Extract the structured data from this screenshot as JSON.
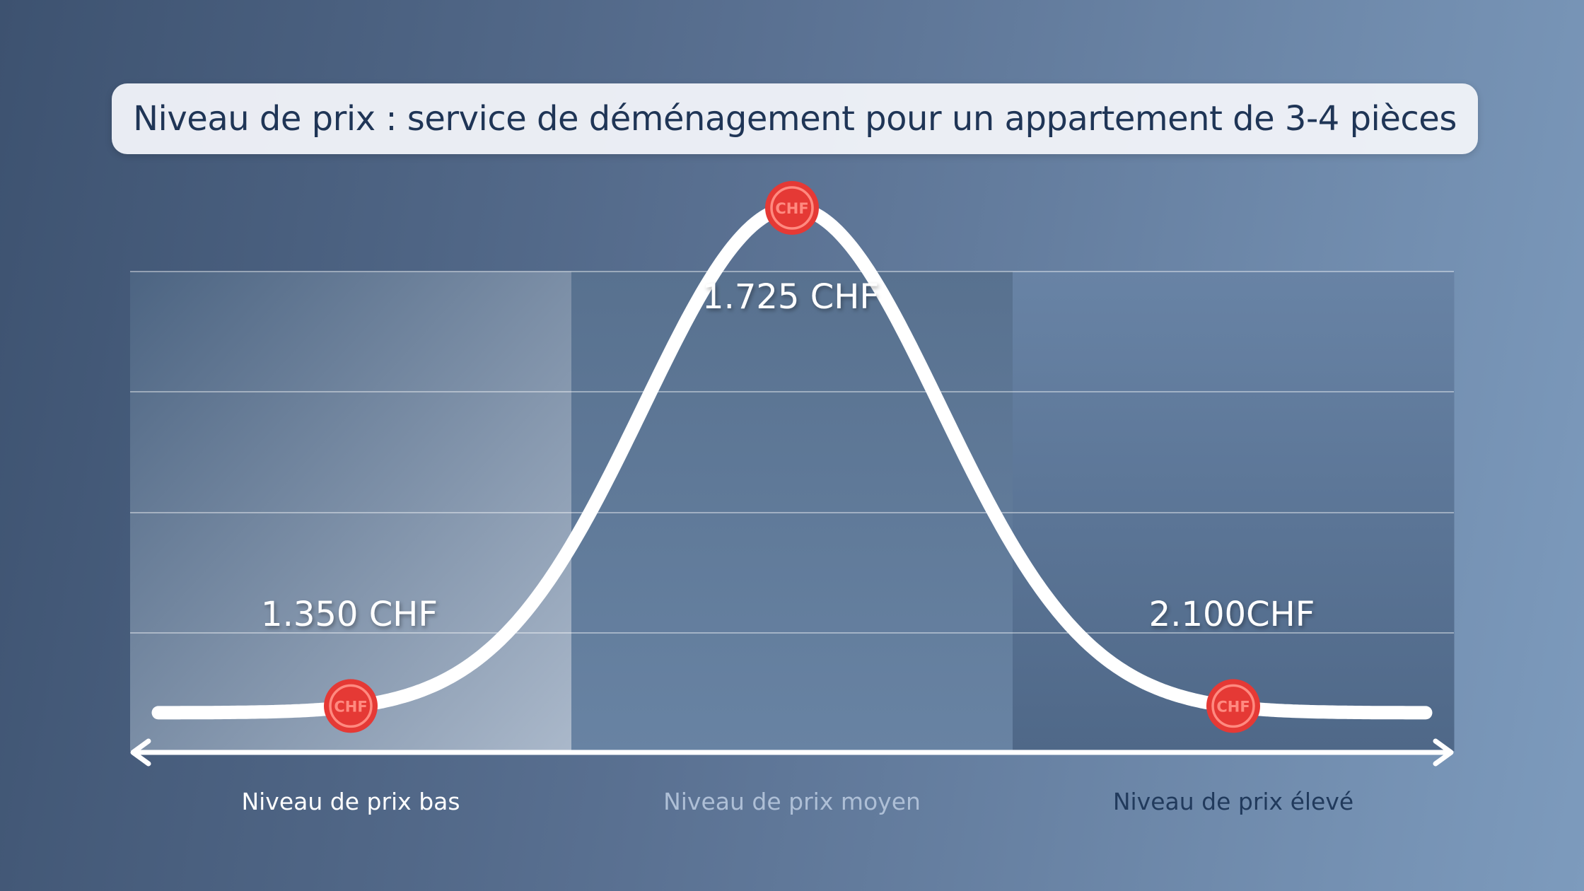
{
  "title": "Niveau de prix : service de déménagement pour un appartement de 3-4 pièces",
  "colors": {
    "curve": "#ffffff",
    "marker": "#e53935",
    "title_text": "#1f3556",
    "low_label": "#ffffff",
    "mid_label": "#aebfd6",
    "high_label": "#213a5c"
  },
  "icons": [
    "chf-coin-icon",
    "double-arrow-axis-icon"
  ],
  "chart_data": {
    "type": "line",
    "title": "Niveau de prix : service de déménagement pour un appartement de 3-4 pièces",
    "categories": [
      "Niveau de prix bas",
      "Niveau de prix moyen",
      "Niveau de prix élevé"
    ],
    "points": [
      {
        "category": "Niveau de prix bas",
        "value": 1350,
        "label": "1.350 CHF",
        "marker_text": "CHF"
      },
      {
        "category": "Niveau de prix moyen",
        "value": 1725,
        "label": "1.725 CHF",
        "marker_text": "CHF"
      },
      {
        "category": "Niveau de prix élevé",
        "value": 2100,
        "label": "2.100CHF",
        "marker_text": "CHF"
      }
    ],
    "distribution": "bell-curve",
    "grid": true,
    "xlabel": "",
    "ylabel": ""
  }
}
